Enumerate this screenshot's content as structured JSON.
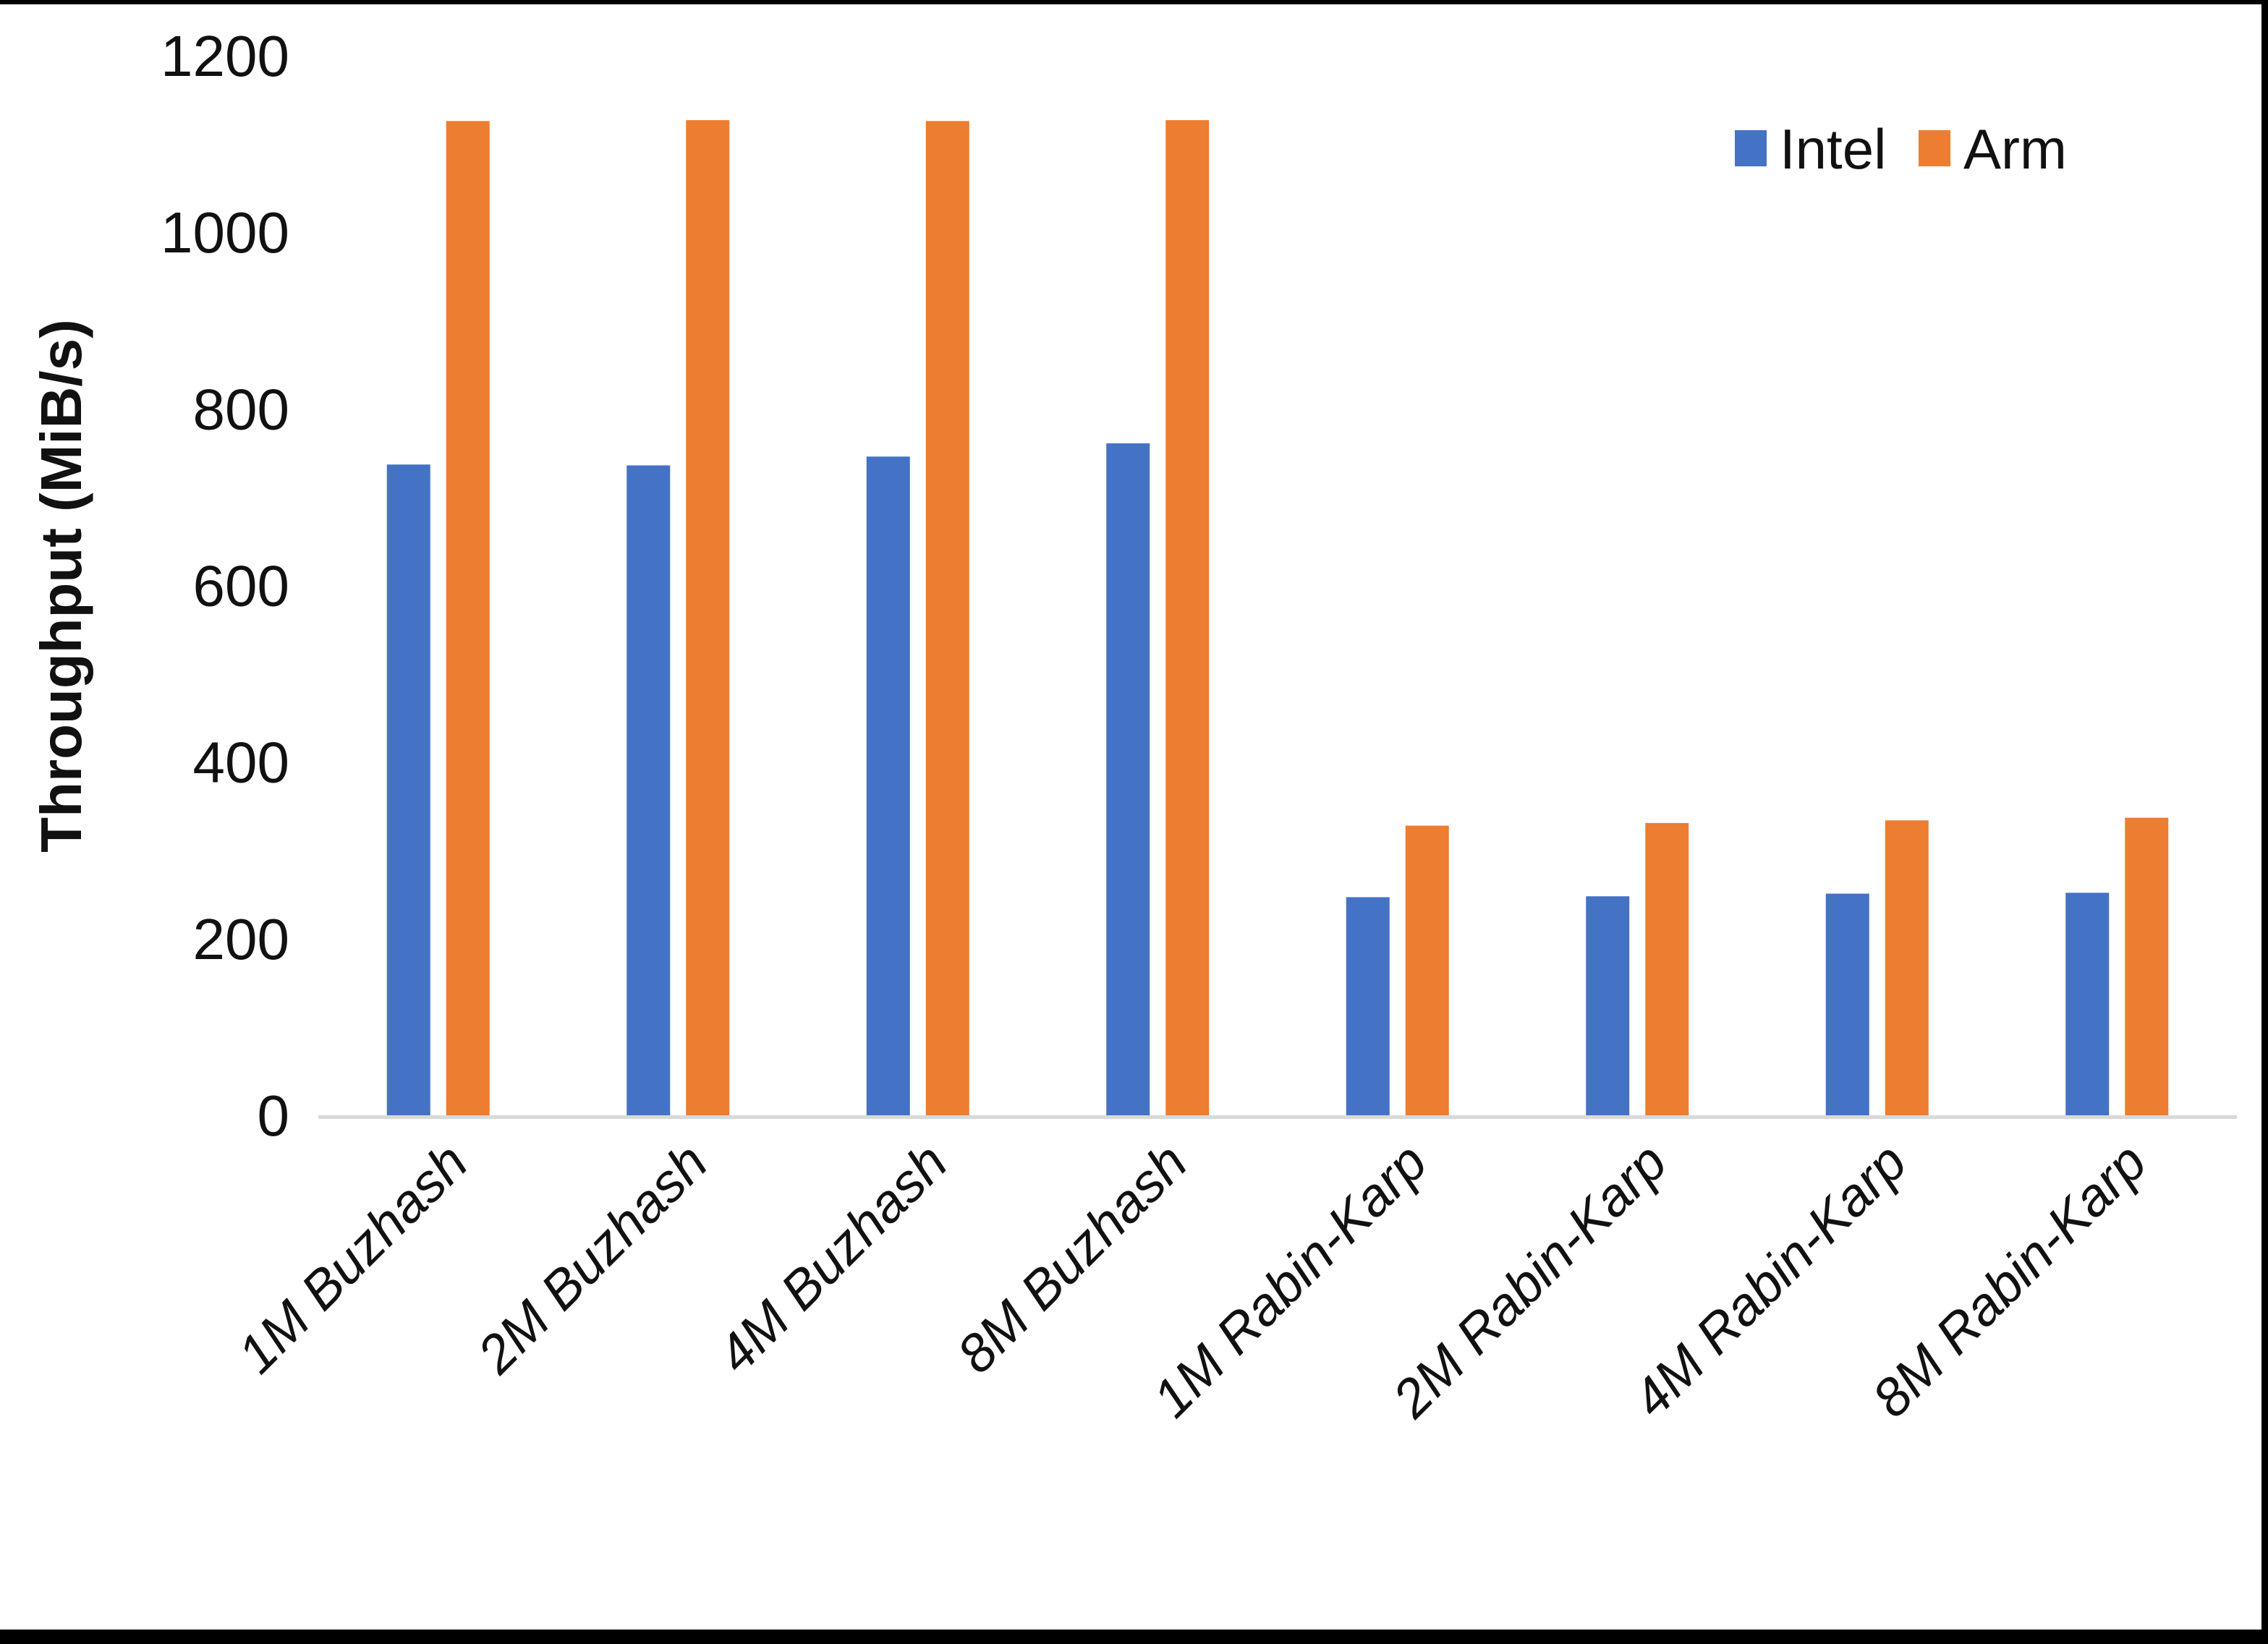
{
  "chart_data": {
    "type": "bar",
    "categories": [
      "1M Buzhash",
      "2M Buzhash",
      "4M Buzhash",
      "8M Buzhash",
      "1M Rabin-Karp",
      "2M Rabin-Karp",
      "4M Rabin-Karp",
      "8M Rabin-Karp"
    ],
    "series": [
      {
        "name": "Intel",
        "color": "#4472C4",
        "values": [
          737,
          736,
          746,
          761,
          247,
          248,
          251,
          252
        ]
      },
      {
        "name": "Arm",
        "color": "#ED7D31",
        "values": [
          1126,
          1127,
          1126,
          1127,
          328,
          331,
          334,
          337
        ]
      }
    ],
    "title": "",
    "xlabel": "",
    "ylabel": "Throughput (MiB/s)",
    "ylim": [
      0,
      1200
    ],
    "yticks": [
      0,
      200,
      400,
      600,
      800,
      1000,
      1200
    ],
    "grid": false,
    "axis_line_color": "#D9D9D9",
    "legend": {
      "position": "top-right",
      "entries": [
        "Intel",
        "Arm"
      ]
    }
  },
  "page": {
    "background": "#ffffff",
    "frame_color": "#000000"
  }
}
